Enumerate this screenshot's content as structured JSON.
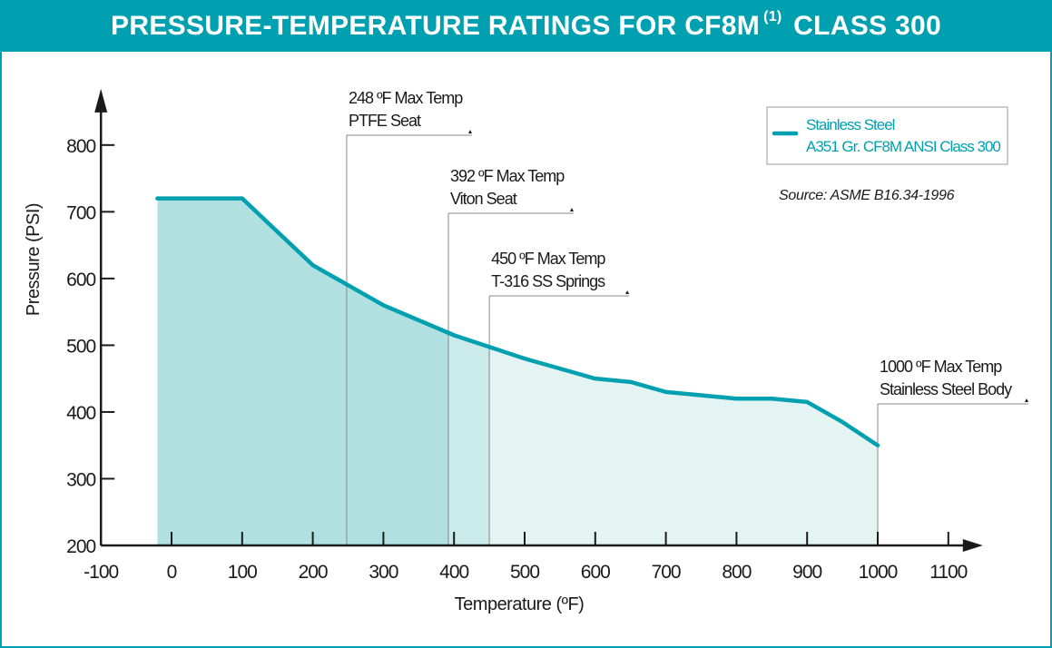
{
  "header": {
    "title_main": "PRESSURE-TEMPERATURE RATINGS FOR CF8M",
    "title_footnote": "(1)",
    "title_class": "CLASS 300"
  },
  "colors": {
    "brand": "#00a0b0",
    "line": "#00a0b0",
    "fill_zone1": "#b0e1e0",
    "fill_zone2": "#cbebea",
    "fill_zone3": "#e3f4f3",
    "annotation_line": "#888888",
    "axis": "#1a1a1a"
  },
  "chart_data": {
    "type": "area",
    "title": "PRESSURE-TEMPERATURE RATINGS FOR CF8M (1) CLASS 300",
    "xlabel": "Temperature (ºF)",
    "ylabel": "Pressure (PSI)",
    "xlim": [
      -100,
      1100
    ],
    "ylim": [
      200,
      800
    ],
    "x_ticks": [
      -100,
      0,
      100,
      200,
      300,
      400,
      500,
      600,
      700,
      800,
      900,
      1000,
      1100
    ],
    "y_ticks": [
      200,
      300,
      400,
      500,
      600,
      700,
      800
    ],
    "grid": false,
    "legend_position": "top-right",
    "series": [
      {
        "name": "Stainless Steel A351 Gr. CF8M ANSI Class 300",
        "x": [
          -20,
          100,
          200,
          300,
          400,
          500,
          600,
          650,
          700,
          800,
          850,
          900,
          950,
          1000
        ],
        "y": [
          720,
          720,
          620,
          560,
          515,
          480,
          450,
          445,
          430,
          420,
          420,
          415,
          385,
          350
        ]
      }
    ],
    "shaded_zones": [
      {
        "from": -20,
        "to": 248,
        "shade": "dark"
      },
      {
        "from": 248,
        "to": 392,
        "shade": "dark"
      },
      {
        "from": 392,
        "to": 450,
        "shade": "medium"
      },
      {
        "from": 450,
        "to": 1000,
        "shade": "light"
      }
    ],
    "annotations": [
      {
        "x": 248,
        "line1": "248 ºF Max Temp",
        "line2": "PTFE Seat"
      },
      {
        "x": 392,
        "line1": "392 ºF Max Temp",
        "line2": "Viton Seat"
      },
      {
        "x": 450,
        "line1": "450 ºF Max Temp",
        "line2": "T-316 SS Springs"
      },
      {
        "x": 1000,
        "line1": "1000 ºF Max Temp",
        "line2": "Stainless Steel Body"
      }
    ],
    "legend": {
      "line1": "Stainless Steel",
      "line2": "A351 Gr. CF8M ANSI Class 300"
    },
    "source": "Source: ASME  B16.34-1996"
  }
}
